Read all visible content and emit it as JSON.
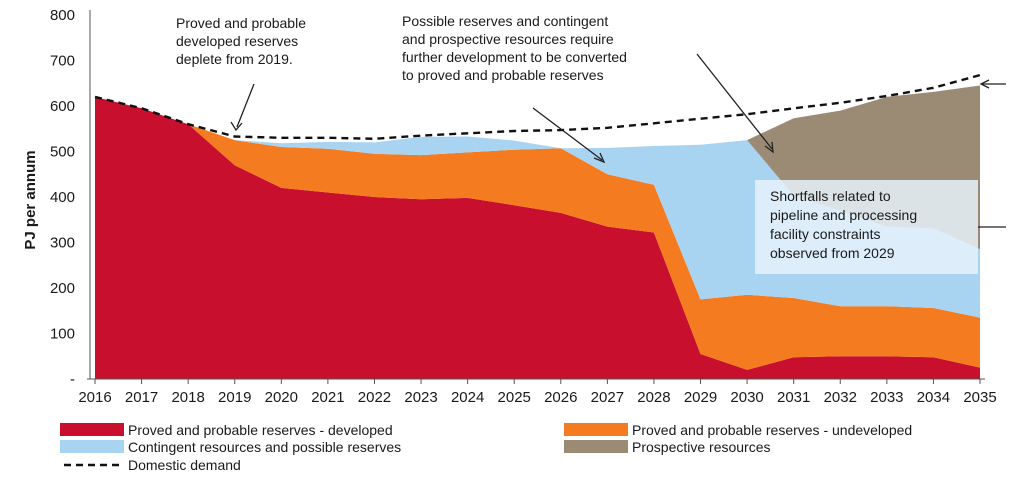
{
  "chart_data": {
    "type": "area",
    "ylabel": "PJ per annum",
    "xlabel": "",
    "ylim": [
      0,
      800
    ],
    "yticks": [
      "800",
      "700",
      "600",
      "500",
      "400",
      "300",
      "200",
      "100",
      "-"
    ],
    "ytick_values": [
      800,
      700,
      600,
      500,
      400,
      300,
      200,
      100,
      0
    ],
    "categories": [
      "2016",
      "2017",
      "2018",
      "2019",
      "2020",
      "2021",
      "2022",
      "2023",
      "2024",
      "2025",
      "2026",
      "2027",
      "2028",
      "2029",
      "2030",
      "2031",
      "2032",
      "2033",
      "2034",
      "2035"
    ],
    "series": [
      {
        "name": "Proved and probable reserves - developed",
        "color": "#c8102e",
        "values": [
          620,
          595,
          560,
          470,
          420,
          410,
          400,
          395,
          398,
          382,
          365,
          335,
          322,
          55,
          20,
          48,
          50,
          50,
          48,
          25
        ]
      },
      {
        "name": "Proved and probable reserves - undeveloped",
        "color": "#f47b20",
        "values": [
          0,
          0,
          0,
          55,
          90,
          96,
          95,
          97,
          100,
          122,
          142,
          115,
          105,
          120,
          165,
          130,
          110,
          110,
          108,
          110
        ]
      },
      {
        "name": "Contingent resources and possible reserves",
        "color": "#a8d4f2",
        "values": [
          0,
          0,
          0,
          0,
          8,
          15,
          25,
          40,
          35,
          20,
          0,
          58,
          85,
          340,
          340,
          225,
          210,
          175,
          175,
          150
        ]
      },
      {
        "name": "Prospective resources",
        "color": "#9c8b74",
        "values": [
          0,
          0,
          0,
          0,
          0,
          0,
          0,
          0,
          0,
          0,
          0,
          0,
          0,
          0,
          0,
          170,
          220,
          285,
          300,
          360
        ]
      }
    ],
    "demand": {
      "name": "Domestic demand",
      "values": [
        620,
        595,
        560,
        533,
        530,
        530,
        528,
        535,
        540,
        545,
        547,
        552,
        562,
        572,
        582,
        595,
        607,
        622,
        640,
        668
      ]
    },
    "annotations": [
      {
        "lines": [
          "Proved and probable",
          "developed reserves",
          "deplete from 2019."
        ]
      },
      {
        "lines": [
          "Possible reserves and contingent",
          "and prospective resources require",
          "further development to be converted",
          "to proved and probable reserves"
        ]
      },
      {
        "lines": [
          "Shortfalls related to",
          "pipeline and processing",
          "facility constraints",
          "observed from 2029"
        ]
      }
    ]
  },
  "colors": {
    "shortfall_box": "#e6f2fb",
    "axis": "#555555",
    "demand_line": "#111111"
  }
}
